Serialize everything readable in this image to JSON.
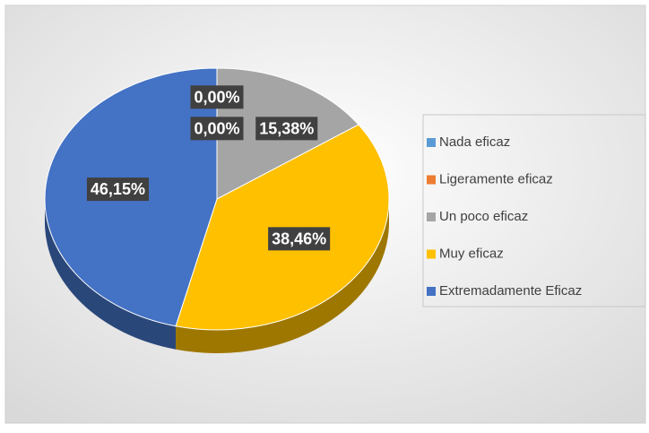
{
  "chart_data": {
    "type": "pie",
    "categories": [
      "Nada eficaz",
      "Ligeramente eficaz",
      "Un poco eficaz",
      "Muy eficaz",
      "Extremadamente Eficaz"
    ],
    "values": [
      0,
      0,
      15.38,
      38.46,
      46.15
    ],
    "value_labels": [
      "0,00%",
      "0,00%",
      "15,38%",
      "38,46%",
      "46,15%"
    ],
    "colors": [
      "#5b9bd5",
      "#ed7d31",
      "#a5a5a5",
      "#ffc000",
      "#4472c4"
    ],
    "legend": "right"
  }
}
